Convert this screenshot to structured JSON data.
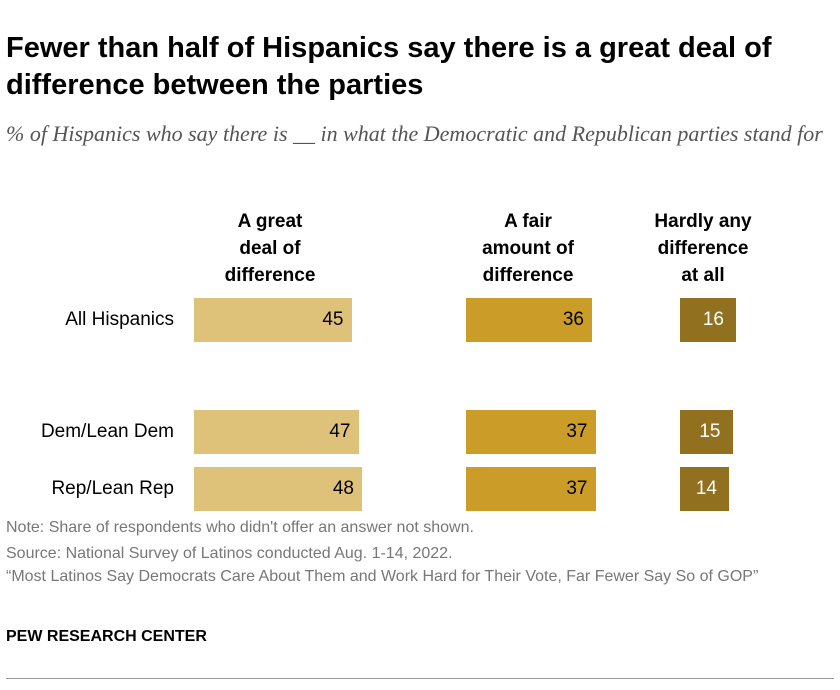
{
  "title": "Fewer than half of Hispanics say there is a great deal of difference between the parties",
  "subtitle": "% of Hispanics who say there is __ in what the Democratic and Republican parties stand for",
  "chart_data": {
    "type": "bar",
    "orientation": "horizontal",
    "categories": [
      "All Hispanics",
      "Dem/Lean Dem",
      "Rep/Lean Rep"
    ],
    "series": [
      {
        "name": "A great deal of difference",
        "values": [
          45,
          47,
          48
        ],
        "color": "#DEC27A",
        "label_color": "#000000"
      },
      {
        "name": "A fair amount of difference",
        "values": [
          36,
          37,
          37
        ],
        "color": "#CB9D28",
        "label_color": "#000000"
      },
      {
        "name": "Hardly any difference at all",
        "values": [
          16,
          15,
          14
        ],
        "color": "#91711F",
        "label_color": "#FFFFFF"
      }
    ],
    "grid": false
  },
  "notes": [
    "Note: Share of respondents who didn't offer an answer not shown.",
    "Source: National Survey of Latinos conducted Aug. 1-14, 2022.",
    "“Most Latinos Say Democrats Care About Them and Work Hard for Their Vote, Far Fewer Say So of GOP”"
  ],
  "brand": "PEW RESEARCH CENTER"
}
